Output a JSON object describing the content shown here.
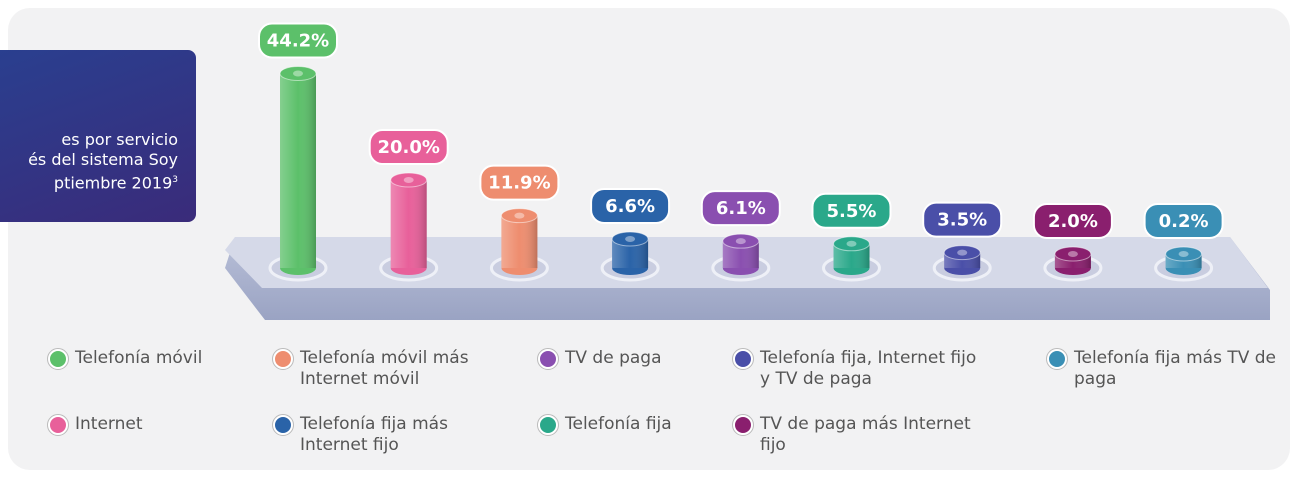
{
  "chart_data": {
    "type": "bar",
    "title_lines": [
      "es por servicio",
      "és del sistema Soy",
      "ptiembre 2019"
    ],
    "footnote_mark": "3",
    "categories": [
      "Telefonía móvil",
      "Internet",
      "Telefonía móvil más Internet móvil",
      "Telefonía fija más Internet fijo",
      "TV de paga",
      "Telefonía fija",
      "Telefonía fija, Internet fijo y TV de paga",
      "TV de paga más Internet fijo",
      "Telefonía fija más TV de paga"
    ],
    "values": [
      44.2,
      20.0,
      11.9,
      6.6,
      6.1,
      5.5,
      3.5,
      2.0,
      0.2
    ],
    "value_labels": [
      "44.2%",
      "20.0%",
      "11.9%",
      "6.6%",
      "6.1%",
      "5.5%",
      "3.5%",
      "2.0%",
      "0.2%"
    ],
    "colors": [
      "#5cc06a",
      "#e8609a",
      "#ee8d6f",
      "#2a63a8",
      "#8a4fb0",
      "#2aa88a",
      "#4a4fa8",
      "#8a1f6e",
      "#3a8fb5"
    ],
    "ylim": [
      0,
      45
    ]
  }
}
